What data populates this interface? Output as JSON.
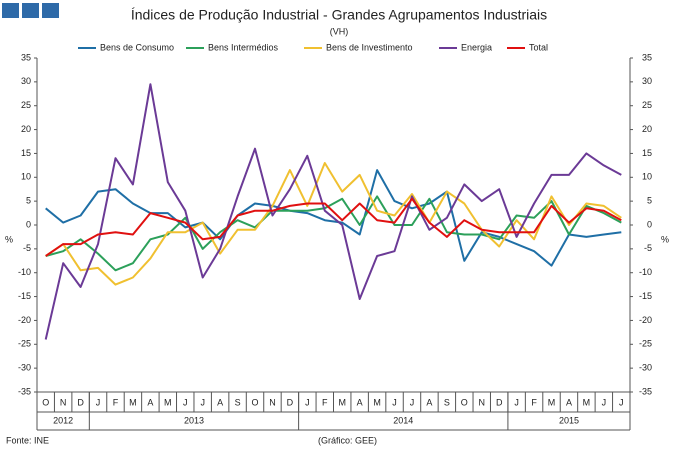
{
  "chart_data": {
    "type": "line",
    "title": "Índices de Produção Industrial - Grandes Agrupamentos Industriais",
    "subtitle": "(VH)",
    "y_label": "%",
    "y2_label": "%",
    "source": "Fonte: INE",
    "credit": "(Gráfico: GEE)",
    "categories": [
      "O",
      "N",
      "D",
      "J",
      "F",
      "M",
      "A",
      "M",
      "J",
      "J",
      "A",
      "S",
      "O",
      "N",
      "D",
      "J",
      "F",
      "M",
      "A",
      "M",
      "J",
      "J",
      "A",
      "S",
      "O",
      "N",
      "D",
      "J",
      "F",
      "M",
      "A",
      "M",
      "J",
      "J"
    ],
    "x_groups": [
      {
        "label": "2012",
        "count": 3
      },
      {
        "label": "2013",
        "count": 12
      },
      {
        "label": "2014",
        "count": 12
      },
      {
        "label": "2015",
        "count": 7
      }
    ],
    "ylim": [
      -35,
      35
    ],
    "yticks": [
      -35,
      -30,
      -25,
      -20,
      -15,
      -10,
      -5,
      0,
      5,
      10,
      15,
      20,
      25,
      30,
      35
    ],
    "y2lim": [
      -35,
      35
    ],
    "y2ticks": [
      -35,
      -30,
      -25,
      -20,
      -15,
      -10,
      -5,
      0,
      5,
      10,
      15,
      20,
      25,
      30,
      35
    ],
    "legend": "top",
    "series": [
      {
        "name": "Bens de Consumo",
        "color": "#1f6fa6",
        "values": [
          3.5,
          0.5,
          2,
          7,
          7.5,
          4.5,
          2.5,
          2.5,
          -0.5,
          0.5,
          -3,
          2,
          4.5,
          4,
          3,
          2.5,
          1,
          0.5,
          -2,
          11.5,
          5,
          3.5,
          4.5,
          7,
          -7.5,
          -1.5,
          -2.5,
          -4,
          -5.5,
          -8.5,
          -2,
          -2.5,
          -2,
          -1.5
        ]
      },
      {
        "name": "Bens Intermédios",
        "color": "#2ca05a",
        "values": [
          -6.5,
          -5.5,
          -3,
          -6,
          -9.5,
          -8,
          -3,
          -2,
          1.5,
          -5,
          -1.5,
          1,
          -0.5,
          3,
          3,
          3,
          3.5,
          5.5,
          0,
          6,
          0,
          0,
          5.5,
          -1.5,
          -2,
          -2,
          -3,
          2,
          1.5,
          5,
          -2,
          4,
          2.5,
          0.5
        ]
      },
      {
        "name": "Bens de Investimento",
        "color": "#f0c030",
        "values": [
          -6.5,
          -4,
          -9.5,
          -9,
          -12.5,
          -11,
          -7,
          -1.5,
          -1.5,
          0.5,
          -6,
          -1,
          -1,
          4,
          11.5,
          4,
          13,
          7,
          10.5,
          3,
          2,
          6.5,
          0.5,
          7,
          4.5,
          -1,
          -4.5,
          1,
          -3,
          6,
          0,
          4.5,
          4,
          1.5
        ]
      },
      {
        "name": "Energia",
        "color": "#6b3a96",
        "values": [
          -24,
          -8,
          -13,
          -4,
          14,
          8.5,
          29.5,
          9,
          3,
          -11,
          -5,
          6,
          16,
          2,
          7.5,
          14.5,
          3,
          0,
          -15.5,
          -6.5,
          -5.5,
          6,
          -1,
          1.5,
          8.5,
          5,
          7.5,
          -2.5,
          4.5,
          10.5,
          10.5,
          15,
          12.5,
          10.5
        ]
      },
      {
        "name": "Total",
        "color": "#e01010",
        "values": [
          -6.5,
          -4,
          -4,
          -2,
          -1.5,
          -2,
          2.5,
          1.5,
          0.5,
          -3,
          -2.5,
          2,
          3,
          3,
          4,
          4.5,
          4.5,
          1,
          4.5,
          1,
          0.5,
          5.5,
          0.5,
          -2.5,
          1,
          -1,
          -1.5,
          -1.5,
          -1.5,
          4,
          0.5,
          3.5,
          3,
          1
        ]
      }
    ]
  }
}
